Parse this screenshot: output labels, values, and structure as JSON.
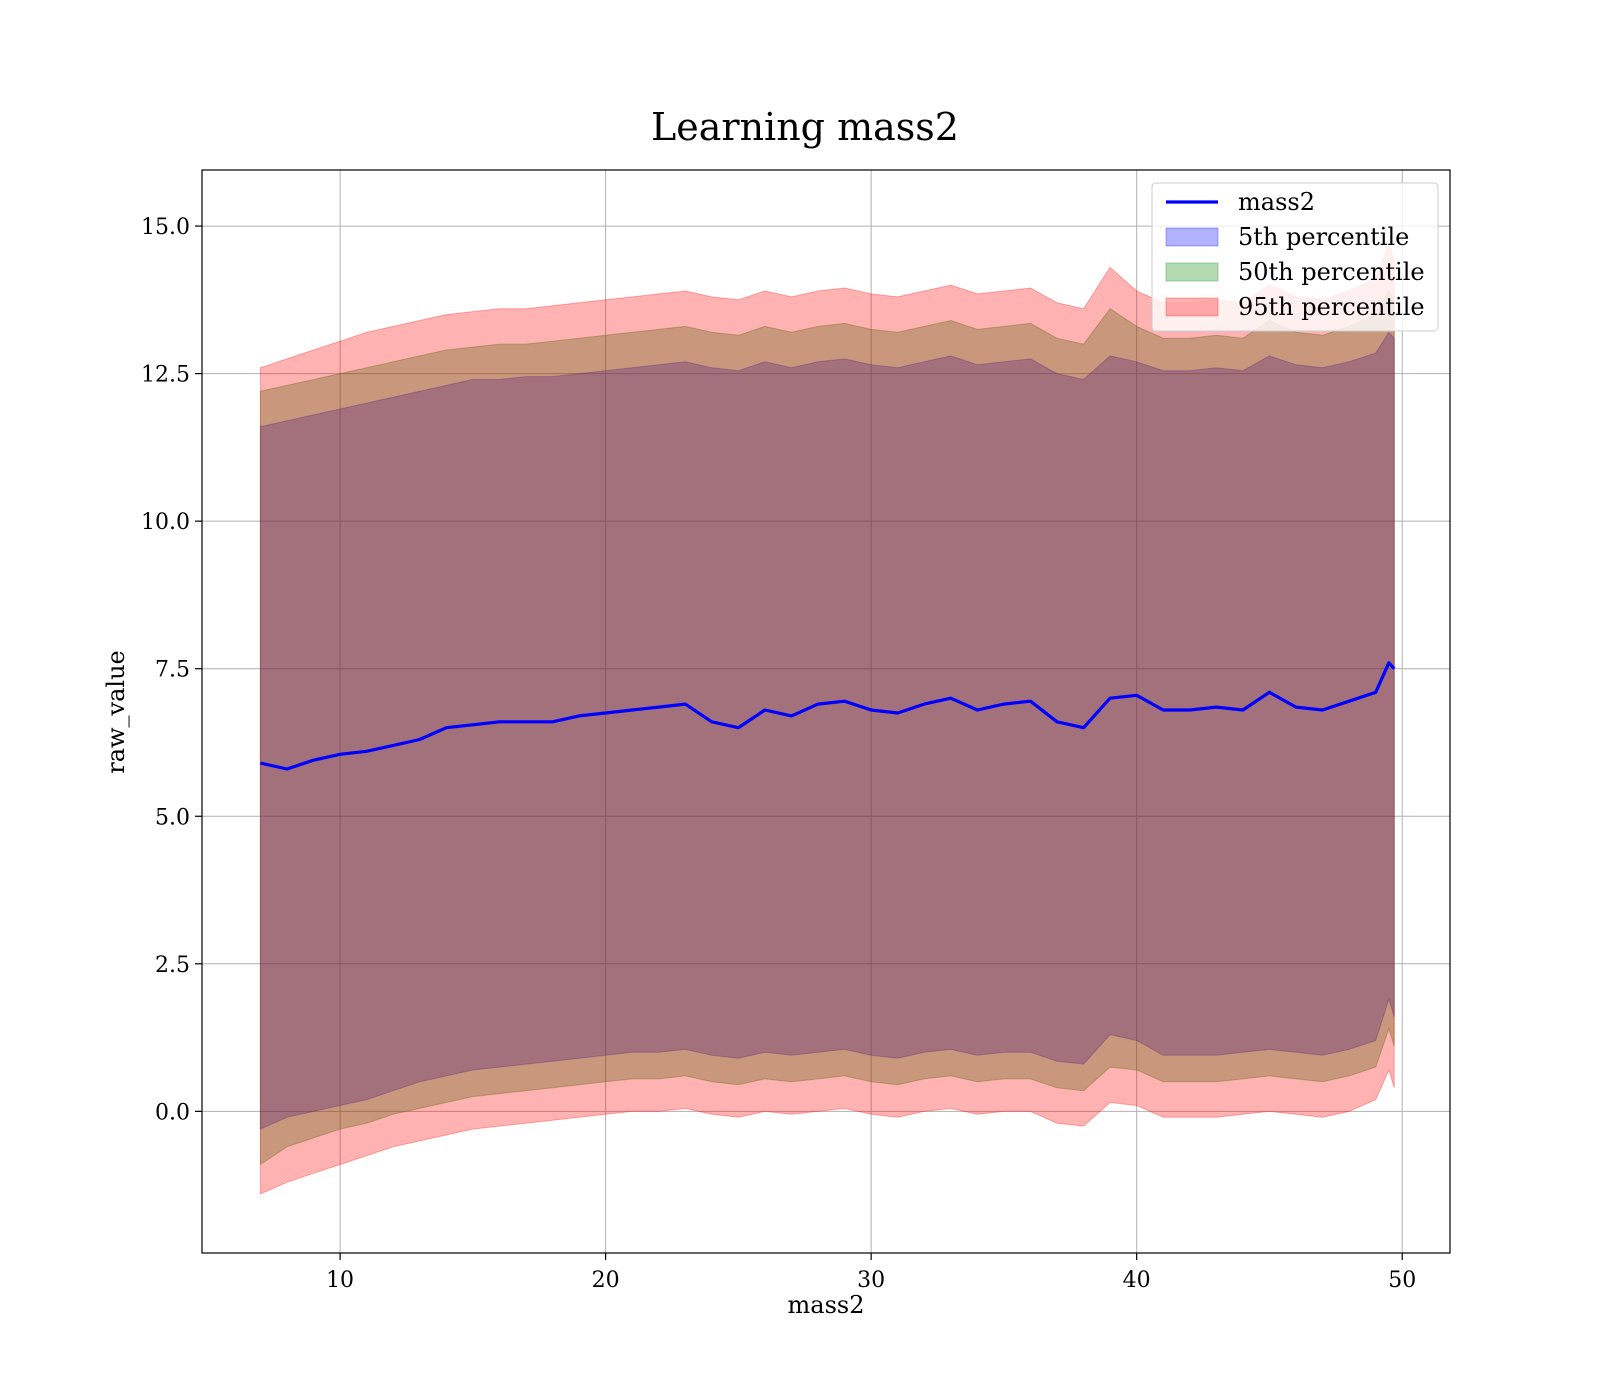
{
  "chart_data": {
    "type": "area",
    "title": "Learning mass2",
    "xlabel": "mass2",
    "ylabel": "raw_value",
    "xlim": [
      4.8,
      51.8
    ],
    "ylim": [
      -2.4,
      15.95
    ],
    "xticks": [
      10,
      20,
      30,
      40,
      50
    ],
    "xtick_labels": [
      "10",
      "20",
      "30",
      "40",
      "50"
    ],
    "yticks": [
      0.0,
      2.5,
      5.0,
      7.5,
      10.0,
      12.5,
      15.0
    ],
    "ytick_labels": [
      "0.0",
      "2.5",
      "5.0",
      "7.5",
      "10.0",
      "12.5",
      "15.0"
    ],
    "grid": true,
    "legend": "top-right",
    "x": [
      7.0,
      8.0,
      9.0,
      10.0,
      11.0,
      12.0,
      13.0,
      14.0,
      15.0,
      16.0,
      17.0,
      18.0,
      19.0,
      20.0,
      21.0,
      22.0,
      23.0,
      24.0,
      25.0,
      26.0,
      27.0,
      28.0,
      29.0,
      30.0,
      31.0,
      32.0,
      33.0,
      34.0,
      35.0,
      36.0,
      37.0,
      38.0,
      39.0,
      40.0,
      41.0,
      42.0,
      43.0,
      44.0,
      45.0,
      46.0,
      47.0,
      48.0,
      49.0,
      49.5,
      49.7
    ],
    "series": [
      {
        "name": "mass2",
        "kind": "line",
        "color": "#0000ff",
        "values": [
          5.9,
          5.8,
          5.95,
          6.05,
          6.1,
          6.2,
          6.3,
          6.5,
          6.55,
          6.6,
          6.6,
          6.6,
          6.7,
          6.75,
          6.8,
          6.85,
          6.9,
          6.6,
          6.5,
          6.8,
          6.7,
          6.9,
          6.95,
          6.8,
          6.75,
          6.9,
          7.0,
          6.8,
          6.9,
          6.95,
          6.6,
          6.5,
          7.0,
          7.05,
          6.8,
          6.8,
          6.85,
          6.8,
          7.1,
          6.85,
          6.8,
          6.95,
          7.1,
          7.6,
          7.5
        ]
      },
      {
        "name": "5th percentile",
        "kind": "band",
        "color": "#0000ff",
        "low": [
          -0.3,
          -0.1,
          0.0,
          0.1,
          0.2,
          0.35,
          0.5,
          0.6,
          0.7,
          0.75,
          0.8,
          0.85,
          0.9,
          0.95,
          1.0,
          1.0,
          1.05,
          0.95,
          0.9,
          1.0,
          0.95,
          1.0,
          1.05,
          0.95,
          0.9,
          1.0,
          1.05,
          0.95,
          1.0,
          1.0,
          0.85,
          0.8,
          1.3,
          1.2,
          0.95,
          0.95,
          0.95,
          1.0,
          1.05,
          1.0,
          0.95,
          1.05,
          1.2,
          1.9,
          1.6
        ],
        "high": [
          11.6,
          11.7,
          11.8,
          11.9,
          12.0,
          12.1,
          12.2,
          12.3,
          12.4,
          12.4,
          12.45,
          12.45,
          12.5,
          12.55,
          12.6,
          12.65,
          12.7,
          12.6,
          12.55,
          12.7,
          12.6,
          12.7,
          12.75,
          12.65,
          12.6,
          12.7,
          12.8,
          12.65,
          12.7,
          12.75,
          12.5,
          12.4,
          12.8,
          12.7,
          12.55,
          12.55,
          12.6,
          12.55,
          12.8,
          12.65,
          12.6,
          12.7,
          12.85,
          13.2,
          13.1
        ]
      },
      {
        "name": "50th percentile",
        "kind": "band",
        "color": "#008000",
        "low": [
          -0.9,
          -0.6,
          -0.45,
          -0.3,
          -0.2,
          -0.05,
          0.05,
          0.15,
          0.25,
          0.3,
          0.35,
          0.4,
          0.45,
          0.5,
          0.55,
          0.55,
          0.6,
          0.5,
          0.45,
          0.55,
          0.5,
          0.55,
          0.6,
          0.5,
          0.45,
          0.55,
          0.6,
          0.5,
          0.55,
          0.55,
          0.4,
          0.35,
          0.75,
          0.7,
          0.5,
          0.5,
          0.5,
          0.55,
          0.6,
          0.55,
          0.5,
          0.6,
          0.75,
          1.4,
          1.1
        ],
        "high": [
          12.2,
          12.3,
          12.4,
          12.5,
          12.6,
          12.7,
          12.8,
          12.9,
          12.95,
          13.0,
          13.0,
          13.05,
          13.1,
          13.15,
          13.2,
          13.25,
          13.3,
          13.2,
          13.15,
          13.3,
          13.2,
          13.3,
          13.35,
          13.25,
          13.2,
          13.3,
          13.4,
          13.25,
          13.3,
          13.35,
          13.1,
          13.0,
          13.6,
          13.3,
          13.1,
          13.1,
          13.15,
          13.1,
          13.4,
          13.2,
          13.15,
          13.3,
          13.5,
          13.9,
          13.7
        ]
      },
      {
        "name": "95th percentile",
        "kind": "band",
        "color": "#ff0000",
        "low": [
          -1.4,
          -1.2,
          -1.05,
          -0.9,
          -0.75,
          -0.6,
          -0.5,
          -0.4,
          -0.3,
          -0.25,
          -0.2,
          -0.15,
          -0.1,
          -0.05,
          0.0,
          0.0,
          0.05,
          -0.05,
          -0.1,
          0.0,
          -0.05,
          0.0,
          0.05,
          -0.05,
          -0.1,
          0.0,
          0.05,
          -0.05,
          0.0,
          0.0,
          -0.2,
          -0.25,
          0.15,
          0.1,
          -0.1,
          -0.1,
          -0.1,
          -0.05,
          0.0,
          -0.05,
          -0.1,
          0.0,
          0.2,
          0.7,
          0.4
        ],
        "high": [
          12.6,
          12.75,
          12.9,
          13.05,
          13.2,
          13.3,
          13.4,
          13.5,
          13.55,
          13.6,
          13.6,
          13.65,
          13.7,
          13.75,
          13.8,
          13.85,
          13.9,
          13.8,
          13.75,
          13.9,
          13.8,
          13.9,
          13.95,
          13.85,
          13.8,
          13.9,
          14.0,
          13.85,
          13.9,
          13.95,
          13.7,
          13.6,
          14.3,
          13.9,
          13.7,
          13.7,
          13.75,
          13.7,
          14.0,
          13.8,
          13.75,
          13.9,
          14.1,
          14.7,
          14.4
        ]
      }
    ]
  }
}
